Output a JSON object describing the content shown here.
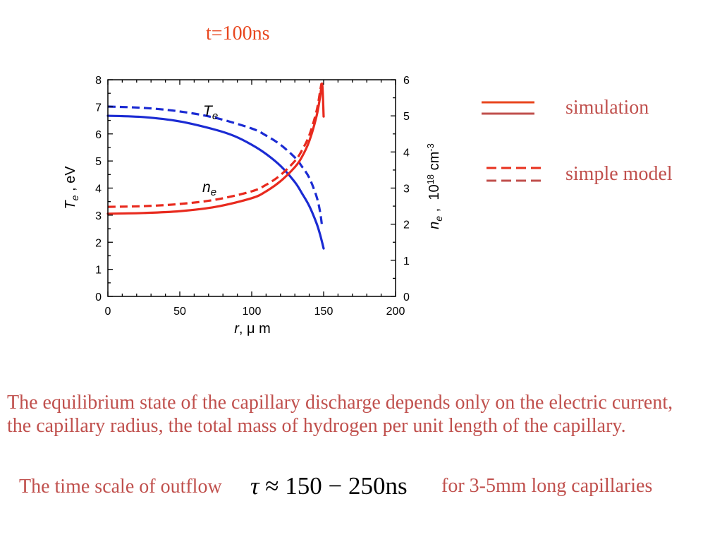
{
  "chart_data": {
    "type": "line",
    "title": "t=100ns",
    "grid": false,
    "legend_position": "right",
    "x_axis": {
      "label": {
        "var": "r",
        "rest": ", μ m"
      },
      "range": [
        0,
        200
      ],
      "ticks": [
        0,
        50,
        100,
        150,
        200
      ],
      "minor_step": 10
    },
    "y_left": {
      "label": {
        "var": "T",
        "sub": "e",
        "rest": " , eV"
      },
      "curve_label": {
        "var": "T",
        "sub": "e"
      },
      "range": [
        0,
        8
      ],
      "ticks": [
        0,
        1,
        2,
        3,
        4,
        5,
        6,
        7,
        8
      ],
      "minor_step": 0.5,
      "series": [
        {
          "legend_index": 0,
          "dashed": false,
          "color": "#1b2bd3",
          "x": [
            0,
            25,
            50,
            75,
            88,
            100,
            110,
            120,
            130,
            135,
            140,
            145,
            147.5,
            150
          ],
          "y": [
            6.67,
            6.62,
            6.46,
            6.15,
            5.92,
            5.6,
            5.26,
            4.82,
            4.22,
            3.8,
            3.34,
            2.71,
            2.29,
            1.77
          ]
        },
        {
          "legend_index": 1,
          "dashed": true,
          "color": "#1b2bd3",
          "x": [
            0,
            25,
            50,
            75,
            100,
            110,
            120,
            130,
            135,
            140,
            145,
            147.5,
            149
          ],
          "y": [
            7.01,
            6.96,
            6.83,
            6.59,
            6.2,
            5.94,
            5.6,
            5.13,
            4.79,
            4.38,
            3.7,
            3.13,
            2.55
          ]
        }
      ]
    },
    "y_right": {
      "label": {
        "var": "n",
        "sub": "e",
        "rest": " ,  10",
        "sup": "18",
        "rest2": " cm",
        "sup2": "-3"
      },
      "curve_label": {
        "var": "n",
        "sub": "e"
      },
      "range": [
        0,
        6
      ],
      "ticks": [
        0,
        1,
        2,
        3,
        4,
        5,
        6
      ],
      "minor_step": 0.5,
      "series": [
        {
          "legend_index": 0,
          "dashed": false,
          "color": "#e82a1e",
          "x": [
            0,
            25,
            50,
            75,
            100,
            110,
            120,
            130,
            135,
            140,
            145,
            147.5,
            149,
            150
          ],
          "y": [
            2.29,
            2.31,
            2.36,
            2.48,
            2.72,
            2.91,
            3.19,
            3.58,
            3.87,
            4.3,
            4.98,
            5.51,
            5.88,
            4.98
          ]
        },
        {
          "legend_index": 1,
          "dashed": true,
          "color": "#e82a1e",
          "x": [
            0,
            25,
            50,
            75,
            100,
            110,
            120,
            130,
            135,
            140,
            145,
            147.5,
            148.5
          ],
          "y": [
            2.48,
            2.5,
            2.56,
            2.68,
            2.91,
            3.09,
            3.36,
            3.75,
            4.05,
            4.46,
            5.12,
            5.67,
            5.9
          ]
        }
      ]
    },
    "legend": [
      {
        "label": "simulation",
        "colors": [
          "#e8461e",
          "#c0504d"
        ]
      },
      {
        "label": "simple model",
        "colors": [
          "#e8301e",
          "#c0504d"
        ]
      }
    ]
  },
  "slide": {
    "paragraph": [
      "The equilibrium state of the capillary discharge depends only on the electric current,",
      "the capillary radius, the total mass of hydrogen per unit length of the capillary."
    ],
    "footer": {
      "lead": "The time scale of outflow",
      "formula_symbol": "τ",
      "formula_rest": " ≈ 150 − 250ns",
      "tail": "for 3-5mm long capillaries"
    }
  },
  "colors": {
    "title": "#e8461e",
    "text": "#c0504d",
    "formula": "#000000"
  }
}
